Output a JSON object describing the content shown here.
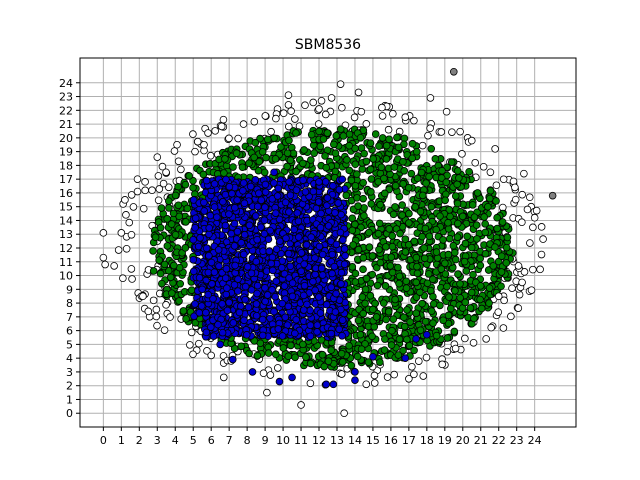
{
  "chart_data": {
    "type": "scatter",
    "title": "SBM8536",
    "xlabel": "",
    "ylabel": "",
    "xlim": [
      -1.3,
      26.3
    ],
    "ylim": [
      -1.0,
      25.8
    ],
    "x_ticks": [
      "0",
      "1",
      "2",
      "3",
      "4",
      "5",
      "6",
      "7",
      "8",
      "9",
      "10",
      "11",
      "12",
      "13",
      "14",
      "15",
      "16",
      "17",
      "18",
      "19",
      "20",
      "21",
      "22",
      "23",
      "24"
    ],
    "y_ticks": [
      "0",
      "1",
      "2",
      "3",
      "4",
      "5",
      "6",
      "7",
      "8",
      "9",
      "10",
      "11",
      "12",
      "13",
      "14",
      "15",
      "16",
      "17",
      "18",
      "19",
      "20",
      "21",
      "22",
      "23",
      "24"
    ],
    "grid": true,
    "legend": "none",
    "colors": {
      "outer": "#ffffff",
      "middle": "#008000",
      "inner": "#0000cd",
      "outlier": "#808080",
      "edge": "#000000",
      "grid": "#b0b0b0"
    },
    "regions": {
      "outer_ellipse": {
        "center": [
          12.6,
          12.3
        ],
        "radii": [
          12.0,
          10.4
        ]
      },
      "middle_ellipse": {
        "center": [
          12.7,
          12.0
        ],
        "radii": [
          10.1,
          8.7
        ]
      },
      "inner_region": {
        "x": [
          5.0,
          13.5
        ],
        "y": [
          5.5,
          17.0
        ]
      }
    },
    "series": [
      {
        "category": "outliers",
        "points": [
          [
            19.5,
            24.8
          ],
          [
            25.0,
            15.8
          ]
        ]
      },
      {
        "category": "outer-sample",
        "points": [
          [
            0,
            13.1
          ],
          [
            0,
            11.3
          ],
          [
            0.1,
            10.8
          ],
          [
            0.6,
            10.7
          ],
          [
            1.1,
            15.2
          ],
          [
            1.2,
            15.5
          ],
          [
            1.0,
            13.1
          ],
          [
            1.9,
            17.0
          ],
          [
            1.9,
            16.1
          ],
          [
            2.2,
            8.5
          ],
          [
            2.3,
            7.6
          ],
          [
            2.5,
            7.4
          ],
          [
            3.0,
            18.6
          ],
          [
            4.1,
            19.5
          ],
          [
            5.1,
            19.0
          ],
          [
            5.6,
            19.5
          ],
          [
            6.0,
            4.2
          ],
          [
            6.7,
            2.6
          ],
          [
            7.8,
            21.0
          ],
          [
            9.1,
            1.5
          ],
          [
            9.6,
            21.4
          ],
          [
            10.3,
            23.1
          ],
          [
            11.0,
            0.6
          ],
          [
            12.0,
            22.1
          ],
          [
            12.7,
            22.9
          ],
          [
            13.2,
            23.9
          ],
          [
            13.4,
            0.0
          ],
          [
            14.2,
            23.3
          ],
          [
            15.1,
            2.2
          ],
          [
            15.5,
            22.2
          ],
          [
            16.8,
            21.5
          ],
          [
            17.0,
            2.5
          ],
          [
            17.8,
            2.7
          ],
          [
            18.2,
            22.9
          ],
          [
            19.1,
            21.9
          ],
          [
            19.6,
            4.7
          ],
          [
            20.5,
            19.8
          ],
          [
            21.3,
            5.4
          ],
          [
            21.8,
            19.2
          ],
          [
            22.0,
            8.5
          ],
          [
            22.3,
            8.2
          ],
          [
            23.1,
            10.7
          ],
          [
            23.3,
            9.5
          ],
          [
            23.6,
            14.8
          ],
          [
            23.4,
            17.4
          ],
          [
            23.9,
            13.5
          ],
          [
            24.0,
            14.2
          ],
          [
            22.9,
            16.4
          ]
        ]
      },
      {
        "category": "inner-sample",
        "points": [
          [
            5.0,
            12.6
          ],
          [
            5.5,
            9.0
          ],
          [
            6.5,
            5.0
          ],
          [
            7.2,
            3.9
          ],
          [
            8.3,
            3.0
          ],
          [
            9.8,
            2.3
          ],
          [
            10.5,
            2.6
          ],
          [
            12.4,
            2.1
          ],
          [
            12.8,
            2.1
          ],
          [
            14.0,
            3.0
          ],
          [
            14.0,
            2.4
          ],
          [
            15.0,
            4.1
          ],
          [
            16.8,
            4.0
          ],
          [
            17.4,
            5.4
          ],
          [
            18.0,
            5.7
          ],
          [
            12.0,
            16.8
          ],
          [
            9.5,
            17.5
          ]
        ]
      }
    ]
  }
}
